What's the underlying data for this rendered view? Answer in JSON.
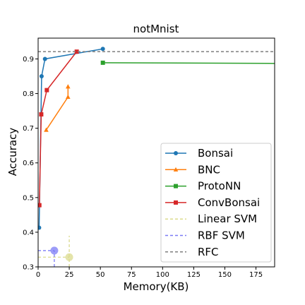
{
  "chart_data": {
    "type": "line",
    "title": "notMnist",
    "xlabel": "Memory(KB)",
    "ylabel": "Accuracy",
    "xlim": [
      0,
      190
    ],
    "ylim": [
      0.3,
      0.96
    ],
    "x_ticks": [
      0,
      25,
      50,
      75,
      100,
      125,
      150,
      175
    ],
    "y_ticks": [
      0.3,
      0.4,
      0.5,
      0.6,
      0.7,
      0.8,
      0.9
    ],
    "x_tick_labels": [
      "0",
      "25",
      "50",
      "75",
      "100",
      "125",
      "150",
      "175"
    ],
    "y_tick_labels": [
      "0.3",
      "0.4",
      "0.5",
      "0.6",
      "0.7",
      "0.8",
      "0.9"
    ],
    "grid": false,
    "legend_position": "lower-right",
    "series": [
      {
        "name": "Bonsai",
        "color": "#1f77b4",
        "style": "solid",
        "marker": "circle",
        "points": [
          [
            0.8,
            0.413
          ],
          [
            2.8,
            0.85
          ],
          [
            5.5,
            0.9
          ],
          [
            52,
            0.929
          ]
        ]
      },
      {
        "name": "BNC",
        "color": "#ff7f0e",
        "style": "solid",
        "marker": "triangle",
        "points": [
          [
            6.5,
            0.695
          ],
          [
            24,
            0.79
          ],
          [
            24,
            0.82
          ]
        ]
      },
      {
        "name": "ProtoNN",
        "color": "#2ca02c",
        "style": "solid",
        "marker": "square",
        "points": [
          [
            52,
            0.889
          ],
          [
            190,
            0.887
          ]
        ]
      },
      {
        "name": "ConvBonsai",
        "color": "#d62728",
        "style": "solid",
        "marker": "square",
        "points": [
          [
            1.0,
            0.478
          ],
          [
            2.5,
            0.74
          ],
          [
            7,
            0.81
          ],
          [
            31,
            0.921
          ]
        ]
      },
      {
        "name": "Linear SVM",
        "color": "#dbdb8d",
        "style": "dashed",
        "marker": "big-circle",
        "points": [
          [
            25,
            0.328
          ]
        ],
        "guide_x": [
          0,
          25
        ],
        "guide_y": [
          0.3,
          0.39
        ]
      },
      {
        "name": "RBF SVM",
        "color": "#7b7bf5",
        "style": "dashed",
        "marker": "big-circle",
        "points": [
          [
            13,
            0.347
          ]
        ],
        "guide_x": [
          0,
          13
        ],
        "guide_y": [
          0.3,
          0.347
        ]
      },
      {
        "name": "RFC",
        "color": "#7f7f7f",
        "style": "dashed",
        "marker": "none",
        "points": [
          [
            0,
            0.921
          ],
          [
            190,
            0.921
          ]
        ]
      }
    ]
  }
}
